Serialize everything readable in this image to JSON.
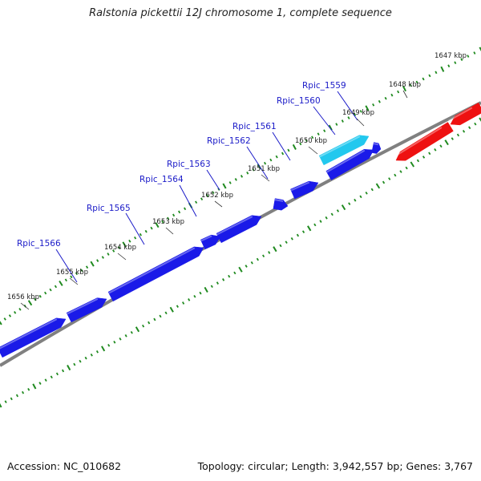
{
  "title": "Ralstonia pickettii 12J chromosome 1, complete sequence",
  "footer": {
    "accession": "Accession: NC_010682",
    "summary": "Topology: circular; Length: 3,942,557 bp; Genes: 3,767"
  },
  "colors": {
    "backbone": "#808080",
    "gene_forward": "#1a1ae8",
    "gene_highlight": "#22c8ee",
    "gene_reverse": "#ee1111",
    "tick": "#1f8a1f",
    "gene_label": "#1a1ac8"
  },
  "kbp_ticks": [
    {
      "label": "1647 kbp"
    },
    {
      "label": "1648 kbp"
    },
    {
      "label": "1649 kbp"
    },
    {
      "label": "1650 kbp"
    },
    {
      "label": "1651 kbp"
    },
    {
      "label": "1652 kbp"
    },
    {
      "label": "1653 kbp"
    },
    {
      "label": "1654 kbp"
    },
    {
      "label": "1655 kbp"
    },
    {
      "label": "1656 kbp"
    }
  ],
  "gene_labels": [
    {
      "label": "Rpic_1559"
    },
    {
      "label": "Rpic_1560"
    },
    {
      "label": "Rpic_1561"
    },
    {
      "label": "Rpic_1562"
    },
    {
      "label": "Rpic_1563"
    },
    {
      "label": "Rpic_1564"
    },
    {
      "label": "Rpic_1565"
    },
    {
      "label": "Rpic_1566"
    }
  ]
}
